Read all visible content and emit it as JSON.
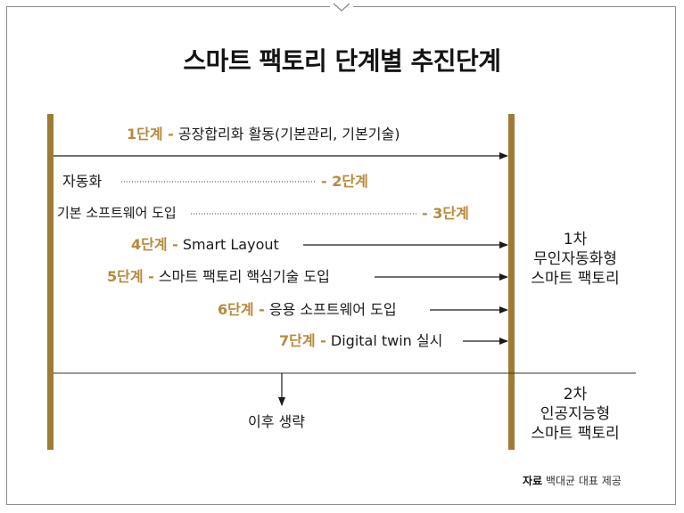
{
  "title": "스마트 팩토리 단계별 추진단계",
  "stages": [
    {
      "label": "1단계 -",
      "text": "공장합리화 활동(기본관리, 기본기술)"
    },
    {
      "label": "- 2단계",
      "text": "자동화"
    },
    {
      "label": "- 3단계",
      "text": "기본 소프트웨어 도입"
    },
    {
      "label": "4단계 -",
      "text": "Smart Layout"
    },
    {
      "label": "5단계 -",
      "text": "스마트 팩토리 핵심기술 도입"
    },
    {
      "label": "6단계 -",
      "text": "응용 소프트웨어 도입"
    },
    {
      "label": "7단계 -",
      "text": "Digital twin 실시"
    }
  ],
  "phase1": {
    "line1": "1차",
    "line2": "무인자동화형",
    "line3": "스마트 팩토리"
  },
  "phase2": {
    "line1": "2차",
    "line2": "인공지능형",
    "line3": "스마트 팩토리"
  },
  "after": "이후 생략",
  "source": {
    "label": "자료",
    "text": "백대균 대표 제공"
  },
  "colors": {
    "accent": "#b8893a",
    "bar": "#a07a35",
    "line": "#1a1a1a"
  }
}
